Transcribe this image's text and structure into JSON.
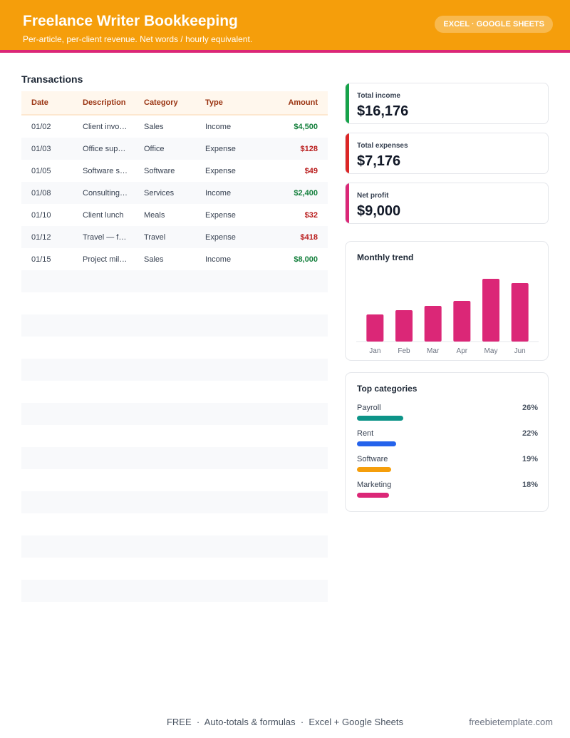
{
  "header": {
    "title": "Freelance Writer Bookkeeping",
    "subtitle": "Per-article, per-client revenue. Net words / hourly equivalent.",
    "badge": "EXCEL · GOOGLE SHEETS"
  },
  "transactions": {
    "title": "Transactions",
    "columns": [
      "Date",
      "Description",
      "Category",
      "Type",
      "Amount"
    ],
    "rows": [
      {
        "date": "01/02",
        "description": "Client invo…",
        "category": "Sales",
        "type": "Income",
        "amount": "$4,500"
      },
      {
        "date": "01/03",
        "description": "Office sup…",
        "category": "Office",
        "type": "Expense",
        "amount": "$128"
      },
      {
        "date": "01/05",
        "description": "Software s…",
        "category": "Software",
        "type": "Expense",
        "amount": "$49"
      },
      {
        "date": "01/08",
        "description": "Consulting…",
        "category": "Services",
        "type": "Income",
        "amount": "$2,400"
      },
      {
        "date": "01/10",
        "description": "Client lunch",
        "category": "Meals",
        "type": "Expense",
        "amount": "$32"
      },
      {
        "date": "01/12",
        "description": "Travel — f…",
        "category": "Travel",
        "type": "Expense",
        "amount": "$418"
      },
      {
        "date": "01/15",
        "description": "Project mil…",
        "category": "Sales",
        "type": "Income",
        "amount": "$8,000"
      }
    ]
  },
  "stats": [
    {
      "label": "Total income",
      "value": "$16,176",
      "color": "#16a34a"
    },
    {
      "label": "Total expenses",
      "value": "$7,176",
      "color": "#dc2626"
    },
    {
      "label": "Net profit",
      "value": "$9,000",
      "color": "#db2777"
    }
  ],
  "trend": {
    "title": "Monthly trend",
    "bar_color": "#db2777"
  },
  "chart_data": {
    "type": "bar",
    "categories": [
      "Jan",
      "Feb",
      "Mar",
      "Apr",
      "May",
      "Jun"
    ],
    "values": [
      38,
      44,
      50,
      57,
      88,
      82
    ],
    "ylim": [
      0,
      100
    ],
    "grid": false
  },
  "top_categories": {
    "title": "Top categories",
    "items": [
      {
        "name": "Payroll",
        "pct": "26%",
        "fraction": 0.26,
        "color": "#0d9488"
      },
      {
        "name": "Rent",
        "pct": "22%",
        "fraction": 0.22,
        "color": "#2563eb"
      },
      {
        "name": "Software",
        "pct": "19%",
        "fraction": 0.19,
        "color": "#f59e0b"
      },
      {
        "name": "Marketing",
        "pct": "18%",
        "fraction": 0.18,
        "color": "#db2777"
      }
    ]
  },
  "footer": {
    "left": "FREE",
    "middle": "Auto-totals & formulas",
    "right": "Excel + Google Sheets",
    "brand": "freebietemplate.com"
  }
}
